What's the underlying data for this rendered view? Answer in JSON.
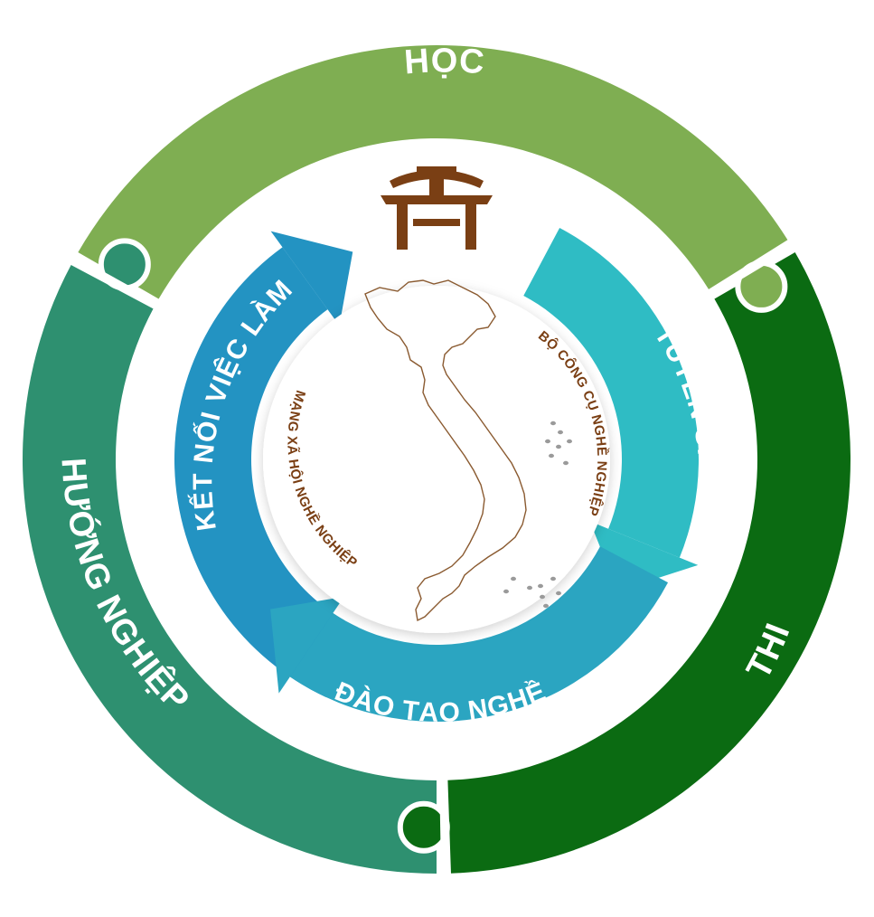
{
  "colors": {
    "hoc": "#7fae52",
    "thi": "#0b6b12",
    "huong_nghiep": "#2e9070",
    "ket_noi": "#2393c2",
    "tuyen_sinh": "#2fbcc4",
    "dao_tao": "#2ba5c1",
    "brown": "#7a3f14",
    "map": "#8a5a30",
    "center_bg": "#f4f4f4"
  },
  "ring": {
    "top_label": "HỌC",
    "right_label": "THI",
    "left_label": "HƯỚNG NGHIỆP"
  },
  "arrows": {
    "left_label": "KẾT NỐI VIỆC LÀM",
    "right_label": "TUYỂN SINH",
    "bottom_label": "ĐÀO TẠO NGHỀ"
  },
  "center": {
    "left_arc_text": "MẠNG XÃ HỘI NGHỀ NGHIỆP",
    "right_arc_text": "BỘ CÔNG CỤ NGHỀ NGHIỆP"
  },
  "icons": {
    "logo": "temple-gate-icon",
    "map": "vietnam-map-icon"
  }
}
